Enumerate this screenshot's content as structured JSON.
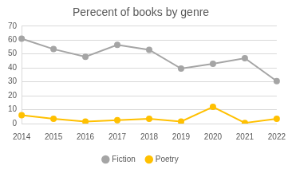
{
  "chart_data": {
    "type": "line",
    "title": "Perecent of books by genre",
    "categories": [
      "2014",
      "2015",
      "2016",
      "2017",
      "2018",
      "2019",
      "2020",
      "2021",
      "2022"
    ],
    "series": [
      {
        "name": "Fiction",
        "color": "#a5a5a5",
        "marker": "circle",
        "values": [
          61,
          53.5,
          48,
          56.5,
          53,
          39.5,
          43,
          47,
          30.5
        ]
      },
      {
        "name": "Poetry",
        "color": "#ffc000",
        "marker": "circle",
        "values": [
          6,
          3.5,
          1.5,
          2.5,
          3.5,
          1.5,
          12,
          0.5,
          3.5
        ]
      }
    ],
    "ylim": [
      0,
      70
    ],
    "yticks": [
      0,
      10,
      20,
      30,
      40,
      50,
      60,
      70
    ],
    "grid": true,
    "legend": "bottom"
  }
}
